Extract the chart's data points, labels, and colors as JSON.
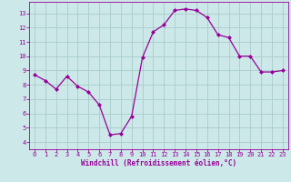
{
  "x": [
    0,
    1,
    2,
    3,
    4,
    5,
    6,
    7,
    8,
    9,
    10,
    11,
    12,
    13,
    14,
    15,
    16,
    17,
    18,
    19,
    20,
    21,
    22,
    23
  ],
  "y": [
    8.7,
    8.3,
    7.7,
    8.6,
    7.9,
    7.5,
    6.6,
    4.5,
    4.6,
    5.8,
    9.9,
    11.7,
    12.2,
    13.2,
    13.3,
    13.2,
    12.7,
    11.5,
    11.3,
    10.0,
    10.0,
    8.9,
    8.9,
    9.0
  ],
  "line_color": "#990099",
  "marker": "D",
  "marker_size": 2,
  "bg_color": "#cce8e8",
  "grid_color": "#aacccc",
  "tick_color": "#990099",
  "label_color": "#990099",
  "xlabel": "Windchill (Refroidissement éolien,°C)",
  "xlim": [
    -0.5,
    23.5
  ],
  "ylim": [
    3.5,
    13.8
  ],
  "yticks": [
    4,
    5,
    6,
    7,
    8,
    9,
    10,
    11,
    12,
    13
  ],
  "xticks": [
    0,
    1,
    2,
    3,
    4,
    5,
    6,
    7,
    8,
    9,
    10,
    11,
    12,
    13,
    14,
    15,
    16,
    17,
    18,
    19,
    20,
    21,
    22,
    23
  ],
  "spine_color": "#990099",
  "font_size_ticks": 5.0,
  "font_size_label": 5.5,
  "linewidth": 0.9
}
